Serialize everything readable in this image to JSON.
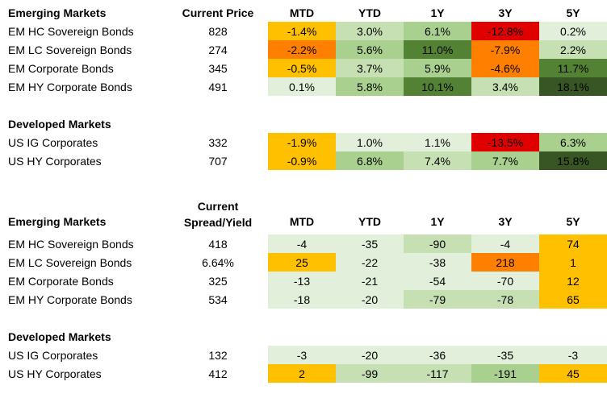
{
  "colors": {
    "heat_map": {
      "dark_red": "#e00000",
      "orange": "#ff7f00",
      "amber": "#ffc000",
      "pale_green": "#e2efda",
      "light_green": "#c6e0b4",
      "mid_green": "#a9d08e",
      "deep_green": "#70ad47",
      "dark_green": "#548235",
      "darkest_green": "#375623"
    }
  },
  "table1": {
    "header": {
      "section": "Emerging Markets",
      "price": "Current Price",
      "cols": [
        "MTD",
        "YTD",
        "1Y",
        "3Y",
        "5Y"
      ]
    },
    "em_rows": [
      {
        "name": "EM HC Sovereign Bonds",
        "price": "828",
        "cells": [
          {
            "v": "-1.4%",
            "c": "amber"
          },
          {
            "v": "3.0%",
            "c": "light_green"
          },
          {
            "v": "6.1%",
            "c": "mid_green"
          },
          {
            "v": "-12.8%",
            "c": "dark_red"
          },
          {
            "v": "0.2%",
            "c": "pale_green"
          }
        ]
      },
      {
        "name": "EM LC Sovereign Bonds",
        "price": "274",
        "cells": [
          {
            "v": "-2.2%",
            "c": "orange"
          },
          {
            "v": "5.6%",
            "c": "mid_green"
          },
          {
            "v": "11.0%",
            "c": "dark_green"
          },
          {
            "v": "-7.9%",
            "c": "orange"
          },
          {
            "v": "2.2%",
            "c": "light_green"
          }
        ]
      },
      {
        "name": "EM Corporate Bonds",
        "price": "345",
        "cells": [
          {
            "v": "-0.5%",
            "c": "amber"
          },
          {
            "v": "3.7%",
            "c": "light_green"
          },
          {
            "v": "5.9%",
            "c": "mid_green"
          },
          {
            "v": "-4.6%",
            "c": "orange"
          },
          {
            "v": "11.7%",
            "c": "dark_green"
          }
        ]
      },
      {
        "name": "EM HY Corporate Bonds",
        "price": "491",
        "cells": [
          {
            "v": "0.1%",
            "c": "pale_green"
          },
          {
            "v": "5.8%",
            "c": "mid_green"
          },
          {
            "v": "10.1%",
            "c": "dark_green"
          },
          {
            "v": "3.4%",
            "c": "light_green"
          },
          {
            "v": "18.1%",
            "c": "darkest_green"
          }
        ]
      }
    ],
    "dm_section": "Developed Markets",
    "dm_rows": [
      {
        "name": "US IG Corporates",
        "price": "332",
        "cells": [
          {
            "v": "-1.9%",
            "c": "amber"
          },
          {
            "v": "1.0%",
            "c": "pale_green"
          },
          {
            "v": "1.1%",
            "c": "pale_green"
          },
          {
            "v": "-13.5%",
            "c": "dark_red"
          },
          {
            "v": "6.3%",
            "c": "mid_green"
          }
        ]
      },
      {
        "name": "US HY Corporates",
        "price": "707",
        "cells": [
          {
            "v": "-0.9%",
            "c": "amber"
          },
          {
            "v": "6.8%",
            "c": "mid_green"
          },
          {
            "v": "7.4%",
            "c": "light_green"
          },
          {
            "v": "7.7%",
            "c": "mid_green"
          },
          {
            "v": "15.8%",
            "c": "darkest_green"
          }
        ]
      }
    ]
  },
  "table2": {
    "header": {
      "section": "Emerging Markets",
      "price_line1": "Current",
      "price_line2": "Spread/Yield",
      "cols": [
        "MTD",
        "YTD",
        "1Y",
        "3Y",
        "5Y"
      ]
    },
    "em_rows": [
      {
        "name": "EM HC Sovereign Bonds",
        "price": "418",
        "cells": [
          {
            "v": "-4",
            "c": "pale_green"
          },
          {
            "v": "-35",
            "c": "pale_green"
          },
          {
            "v": "-90",
            "c": "light_green"
          },
          {
            "v": "-4",
            "c": "pale_green"
          },
          {
            "v": "74",
            "c": "amber"
          }
        ]
      },
      {
        "name": "EM LC Sovereign Bonds",
        "price": "6.64%",
        "cells": [
          {
            "v": "25",
            "c": "amber"
          },
          {
            "v": "-22",
            "c": "pale_green"
          },
          {
            "v": "-38",
            "c": "pale_green"
          },
          {
            "v": "218",
            "c": "orange"
          },
          {
            "v": "1",
            "c": "amber"
          }
        ]
      },
      {
        "name": "EM Corporate Bonds",
        "price": "325",
        "cells": [
          {
            "v": "-13",
            "c": "pale_green"
          },
          {
            "v": "-21",
            "c": "pale_green"
          },
          {
            "v": "-54",
            "c": "pale_green"
          },
          {
            "v": "-70",
            "c": "pale_green"
          },
          {
            "v": "12",
            "c": "amber"
          }
        ]
      },
      {
        "name": "EM HY Corporate Bonds",
        "price": "534",
        "cells": [
          {
            "v": "-18",
            "c": "pale_green"
          },
          {
            "v": "-20",
            "c": "pale_green"
          },
          {
            "v": "-79",
            "c": "light_green"
          },
          {
            "v": "-78",
            "c": "light_green"
          },
          {
            "v": "65",
            "c": "amber"
          }
        ]
      }
    ],
    "dm_section": "Developed Markets",
    "dm_rows": [
      {
        "name": "US IG Corporates",
        "price": "132",
        "cells": [
          {
            "v": "-3",
            "c": "pale_green"
          },
          {
            "v": "-20",
            "c": "pale_green"
          },
          {
            "v": "-36",
            "c": "pale_green"
          },
          {
            "v": "-35",
            "c": "pale_green"
          },
          {
            "v": "-3",
            "c": "pale_green"
          }
        ]
      },
      {
        "name": "US HY Corporates",
        "price": "412",
        "cells": [
          {
            "v": "2",
            "c": "amber"
          },
          {
            "v": "-99",
            "c": "light_green"
          },
          {
            "v": "-117",
            "c": "light_green"
          },
          {
            "v": "-191",
            "c": "mid_green"
          },
          {
            "v": "45",
            "c": "amber"
          }
        ]
      }
    ]
  }
}
